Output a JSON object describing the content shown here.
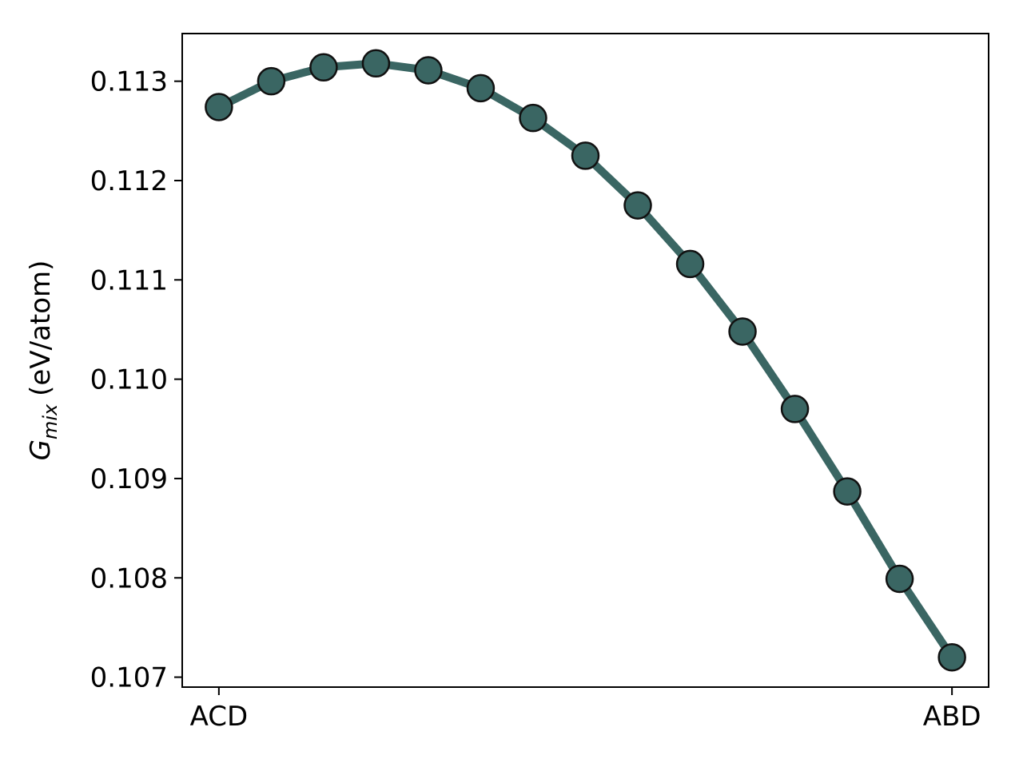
{
  "chart_data": {
    "type": "line",
    "title": "",
    "xlabel": "",
    "ylabel": {
      "symbol": "G",
      "subscript": "mix",
      "unit": "(eV/atom)"
    },
    "x": [
      0,
      1,
      2,
      3,
      4,
      5,
      6,
      7,
      8,
      9,
      10,
      11,
      12,
      13,
      14
    ],
    "x_tick_labels": [
      {
        "x": 0,
        "label": "ACD"
      },
      {
        "x": 14,
        "label": "ABD"
      }
    ],
    "series": [
      {
        "values": [
          0.11274,
          0.113,
          0.11314,
          0.11318,
          0.11311,
          0.11293,
          0.11263,
          0.11225,
          0.11175,
          0.11116,
          0.11048,
          0.1097,
          0.10887,
          0.10799,
          0.1072
        ],
        "color": "#3a6663",
        "marker": "circle",
        "marker_edge_color": "#111111"
      }
    ],
    "xlim": [
      -0.7,
      14.7
    ],
    "ylim": [
      0.1069,
      0.11348
    ],
    "y_ticks": [
      "0.107",
      "0.108",
      "0.109",
      "0.110",
      "0.111",
      "0.112",
      "0.113"
    ],
    "grid": false,
    "legend": "none"
  }
}
